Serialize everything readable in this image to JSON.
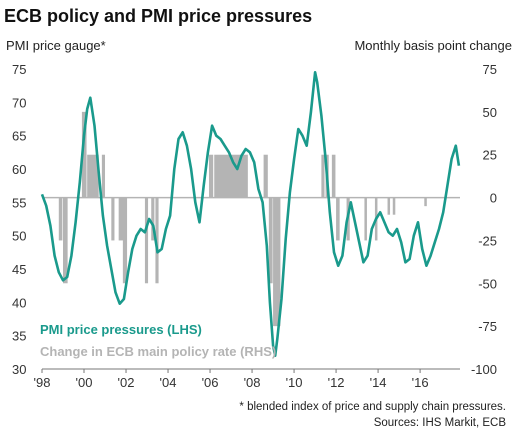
{
  "chart_data": {
    "type": "line",
    "title": "ECB policy and PMI price pressures",
    "left_axis_title": "PMI price gauge*",
    "right_axis_title": "Monthly basis point change",
    "left_ticks": [
      "75",
      "70",
      "65",
      "60",
      "55",
      "50",
      "45",
      "40",
      "35",
      "30"
    ],
    "right_ticks": [
      "75",
      "50",
      "25",
      "0",
      "-25",
      "-50",
      "-75",
      "-100"
    ],
    "x_ticks": [
      "'98",
      "'00",
      "'02",
      "'04",
      "'06",
      "'08",
      "'10",
      "'12",
      "'14",
      "'16"
    ],
    "ylim_left": [
      30,
      75
    ],
    "ylim_right": [
      -100,
      75
    ],
    "xlim": [
      1998.0,
      2017.9
    ],
    "legend": [
      {
        "label": "PMI price pressures (LHS)",
        "color": "#1a9a8c"
      },
      {
        "label": "Change in ECB main policy rate (RHS)",
        "color": "#b4b4b4"
      }
    ],
    "footnotes": [
      "* blended index of price and supply chain pressures.",
      "Sources: IHS Markit, ECB"
    ],
    "series": [
      {
        "name": "PMI price pressures (LHS)",
        "axis": "left",
        "color": "#1a9a8c",
        "x": [
          1998.0,
          1998.2,
          1998.4,
          1998.6,
          1998.8,
          1999.0,
          1999.2,
          1999.4,
          1999.6,
          1999.8,
          2000.0,
          2000.15,
          2000.3,
          2000.5,
          2000.7,
          2000.9,
          2001.1,
          2001.3,
          2001.5,
          2001.7,
          2001.9,
          2002.1,
          2002.3,
          2002.5,
          2002.7,
          2002.9,
          2003.1,
          2003.3,
          2003.5,
          2003.7,
          2003.9,
          2004.1,
          2004.3,
          2004.5,
          2004.7,
          2004.9,
          2005.1,
          2005.3,
          2005.5,
          2005.7,
          2005.9,
          2006.1,
          2006.3,
          2006.5,
          2006.7,
          2006.9,
          2007.1,
          2007.3,
          2007.5,
          2007.7,
          2007.9,
          2008.1,
          2008.3,
          2008.5,
          2008.7,
          2008.85,
          2009.0,
          2009.1,
          2009.2,
          2009.4,
          2009.6,
          2009.8,
          2010.0,
          2010.2,
          2010.4,
          2010.6,
          2010.8,
          2011.0,
          2011.1,
          2011.3,
          2011.5,
          2011.7,
          2011.9,
          2012.1,
          2012.3,
          2012.5,
          2012.7,
          2012.9,
          2013.1,
          2013.3,
          2013.5,
          2013.7,
          2013.9,
          2014.1,
          2014.3,
          2014.5,
          2014.7,
          2014.9,
          2015.1,
          2015.3,
          2015.5,
          2015.7,
          2015.9,
          2016.1,
          2016.3,
          2016.5,
          2016.7,
          2016.9,
          2017.1,
          2017.3,
          2017.5,
          2017.7,
          2017.85
        ],
        "y": [
          56.2,
          54.5,
          51.5,
          47.0,
          44.5,
          43.3,
          43.8,
          47.0,
          52.0,
          58.0,
          65.0,
          69.0,
          70.7,
          66.5,
          59.5,
          53.0,
          48.5,
          45.0,
          41.5,
          39.8,
          40.5,
          44.5,
          48.0,
          50.0,
          51.0,
          50.5,
          52.5,
          51.5,
          47.5,
          48.0,
          51.0,
          53.0,
          60.0,
          64.5,
          65.5,
          63.5,
          60.0,
          55.0,
          52.0,
          57.5,
          62.5,
          66.5,
          65.0,
          64.5,
          63.5,
          62.5,
          61.0,
          60.0,
          62.0,
          63.0,
          62.5,
          61.0,
          57.0,
          55.0,
          48.5,
          40.0,
          33.5,
          32.0,
          34.5,
          40.5,
          49.5,
          56.5,
          61.5,
          66.0,
          65.0,
          63.5,
          68.5,
          74.5,
          73.0,
          68.0,
          61.5,
          53.5,
          47.5,
          45.5,
          47.0,
          52.0,
          55.0,
          52.0,
          49.0,
          46.0,
          47.0,
          51.0,
          52.5,
          53.5,
          52.0,
          50.5,
          50.0,
          51.0,
          49.0,
          46.0,
          46.5,
          50.0,
          52.0,
          48.0,
          45.5,
          47.0,
          49.0,
          51.0,
          53.5,
          57.5,
          61.5,
          63.5,
          60.5
        ]
      },
      {
        "name": "Change in ECB main policy rate (RHS)",
        "axis": "right",
        "color": "#b4b4b4",
        "bars": [
          {
            "x": 1998.8,
            "w": 0.17,
            "v": -25
          },
          {
            "x": 1999.0,
            "w": 0.22,
            "v": -50
          },
          {
            "x": 1999.9,
            "w": 0.22,
            "v": 50
          },
          {
            "x": 2000.15,
            "w": 0.55,
            "v": 25
          },
          {
            "x": 2000.85,
            "w": 0.15,
            "v": 25
          },
          {
            "x": 2001.3,
            "w": 0.15,
            "v": -25
          },
          {
            "x": 2001.65,
            "w": 0.32,
            "v": -25
          },
          {
            "x": 2001.85,
            "w": 0.2,
            "v": -50
          },
          {
            "x": 2002.9,
            "w": 0.15,
            "v": -50
          },
          {
            "x": 2003.2,
            "w": 0.15,
            "v": -25
          },
          {
            "x": 2003.4,
            "w": 0.15,
            "v": -50
          },
          {
            "x": 2005.95,
            "w": 0.2,
            "v": 25
          },
          {
            "x": 2006.2,
            "w": 1.6,
            "v": 25
          },
          {
            "x": 2008.55,
            "w": 0.2,
            "v": 25
          },
          {
            "x": 2008.8,
            "w": 0.18,
            "v": -50
          },
          {
            "x": 2009.0,
            "w": 0.35,
            "v": -75
          },
          {
            "x": 2011.3,
            "w": 0.15,
            "v": 25
          },
          {
            "x": 2011.5,
            "w": 0.15,
            "v": 25
          },
          {
            "x": 2011.8,
            "w": 0.17,
            "v": 25
          },
          {
            "x": 2012.0,
            "w": 0.17,
            "v": -25
          },
          {
            "x": 2012.5,
            "w": 0.15,
            "v": -25
          },
          {
            "x": 2013.35,
            "w": 0.12,
            "v": -25
          },
          {
            "x": 2013.85,
            "w": 0.12,
            "v": -25
          },
          {
            "x": 2014.45,
            "w": 0.12,
            "v": -10
          },
          {
            "x": 2014.7,
            "w": 0.12,
            "v": -10
          },
          {
            "x": 2016.2,
            "w": 0.12,
            "v": -5
          }
        ]
      }
    ]
  }
}
